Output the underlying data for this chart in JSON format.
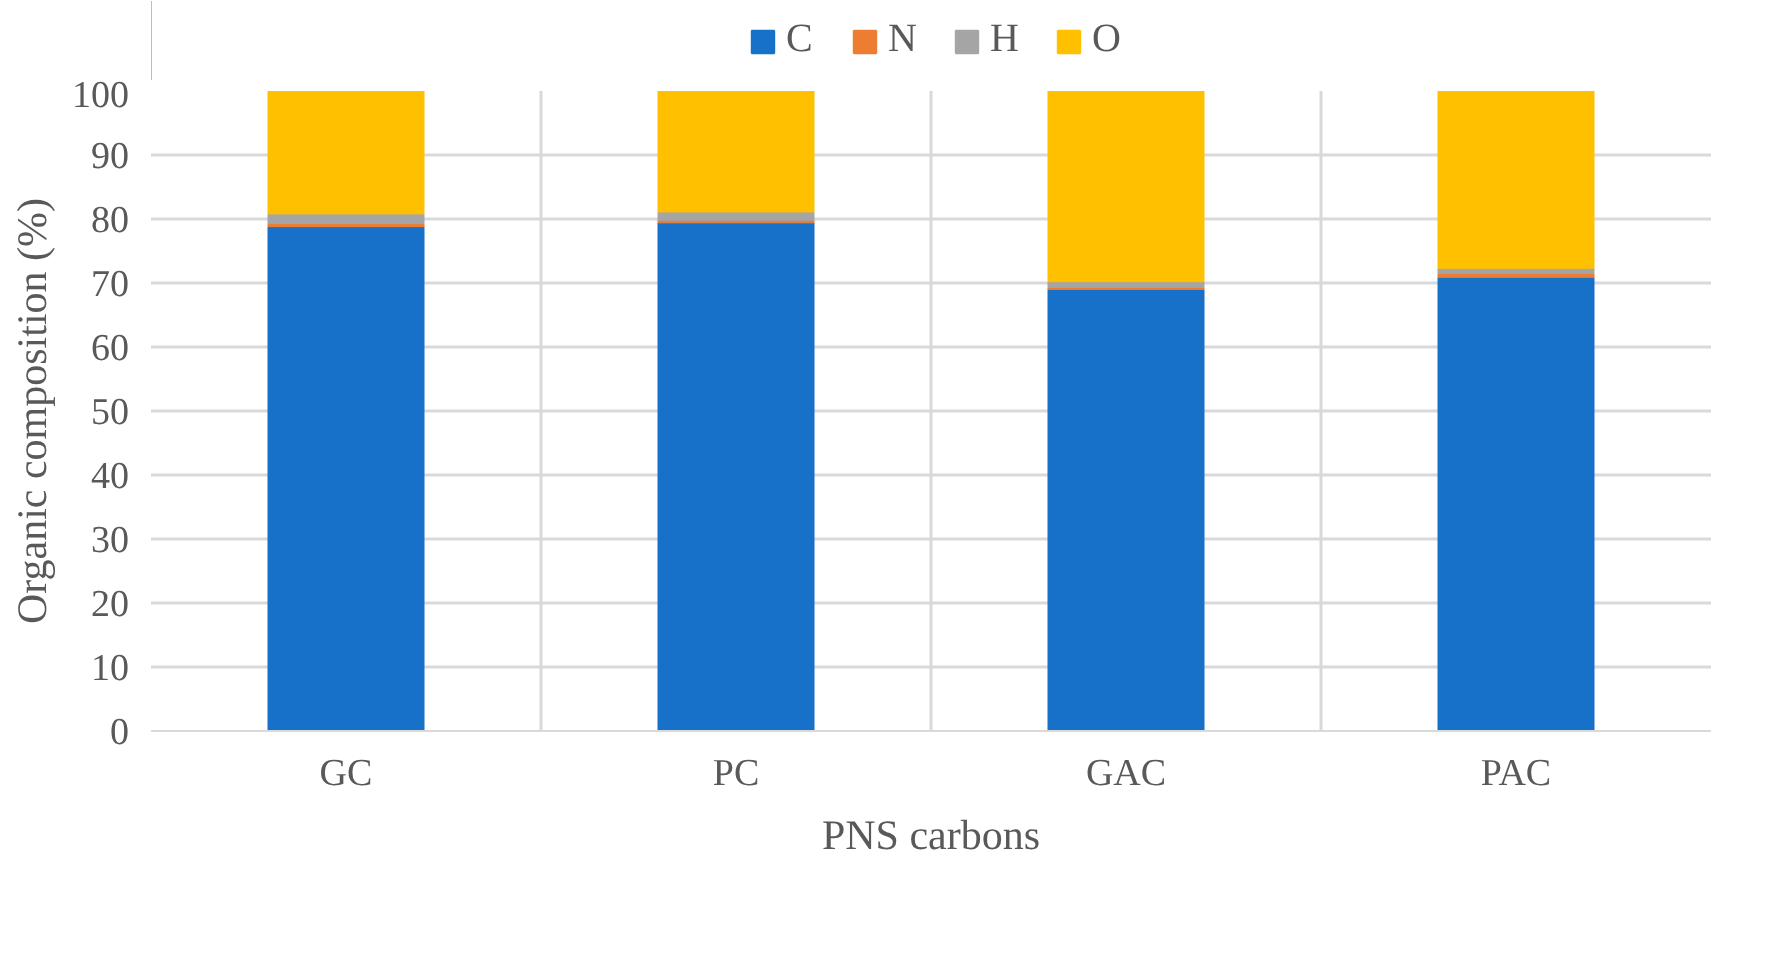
{
  "chart_data": {
    "type": "bar",
    "stacked": true,
    "xlabel": "PNS carbons",
    "ylabel": "Organic composition (%)",
    "categories": [
      "GC",
      "PC",
      "GAC",
      "PAC"
    ],
    "series": [
      {
        "name": "C",
        "color": "#1771c8",
        "values": [
          78.8,
          79.4,
          69.0,
          70.9
        ]
      },
      {
        "name": "N",
        "color": "#ed7d31",
        "values": [
          0.5,
          0.4,
          0.3,
          0.6
        ]
      },
      {
        "name": "H",
        "color": "#a5a5a5",
        "values": [
          1.5,
          1.3,
          0.9,
          0.8
        ]
      },
      {
        "name": "O",
        "color": "#ffc000",
        "values": [
          19.2,
          18.9,
          29.8,
          27.7
        ]
      }
    ],
    "ylim": [
      0,
      100
    ],
    "yticks": [
      0,
      10,
      20,
      30,
      40,
      50,
      60,
      70,
      80,
      90,
      100
    ],
    "grid": true,
    "legend": "top"
  }
}
